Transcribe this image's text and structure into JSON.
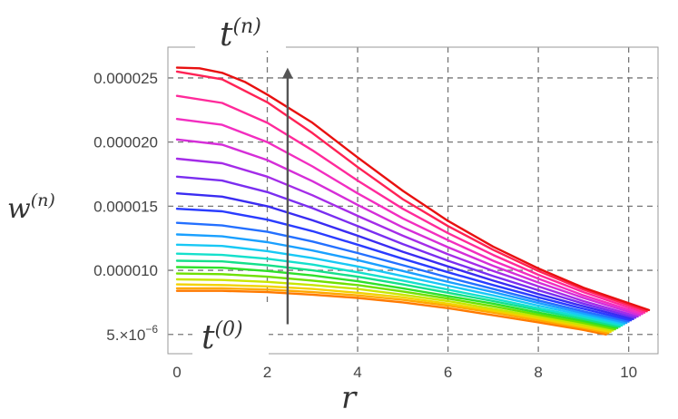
{
  "chart_data": {
    "type": "line",
    "xlabel": "r",
    "ylabel": "w",
    "ylabel_sup": "(n)",
    "xlim": [
      -0.2,
      10.65
    ],
    "ylim": [
      3.5e-06,
      2.74e-05
    ],
    "x_ticks": [
      0,
      2,
      4,
      6,
      8,
      10
    ],
    "x_tick_labels": [
      "0",
      "2",
      "4",
      "6",
      "8",
      "10"
    ],
    "y_ticks": [
      5e-06,
      1e-05,
      1.5e-05,
      2e-05,
      2.5e-05
    ],
    "y_tick_labels": [
      "0.000010",
      "0.000015",
      "0.000020",
      "0.000025"
    ],
    "y_tick_label_first": {
      "mantissa": "5.×10",
      "exponent": "−6"
    },
    "grid": {
      "x": [
        2,
        4,
        6,
        8,
        10
      ],
      "y": [
        5e-06,
        1e-05,
        1.5e-05,
        2e-05,
        2.5e-05
      ]
    },
    "annotations": {
      "arrow_x": 2.45,
      "arrow_from": 5.8e-06,
      "arrow_to": 2.58e-05,
      "label_top": {
        "base": "t",
        "sup": "(n)"
      },
      "label_bottom": {
        "base": "t",
        "sup": "(0)"
      }
    },
    "series_colors": [
      "#ff7a00",
      "#ffa800",
      "#f2d200",
      "#c8e600",
      "#6fe000",
      "#2ee02a",
      "#14e08a",
      "#14e0cc",
      "#18c8f5",
      "#1aa0ff",
      "#2470ff",
      "#2a3cff",
      "#3a2cf2",
      "#7a2ef0",
      "#a42ce8",
      "#d52ed8",
      "#f22ec0",
      "#ff2a9a",
      "#ff2255",
      "#e81010"
    ],
    "series": [
      {
        "values": [
          [
            0,
            8.4e-06
          ],
          [
            1,
            8.4e-06
          ],
          [
            2,
            8.3e-06
          ],
          [
            3,
            8.1e-06
          ],
          [
            4,
            7.85e-06
          ],
          [
            5,
            7.5e-06
          ],
          [
            6,
            7.05e-06
          ],
          [
            7,
            6.5e-06
          ],
          [
            8,
            5.95e-06
          ],
          [
            9,
            5.35e-06
          ],
          [
            9.5,
            5e-06
          ]
        ]
      },
      {
        "values": [
          [
            0,
            8.6e-06
          ],
          [
            1,
            8.6e-06
          ],
          [
            2,
            8.5e-06
          ],
          [
            3,
            8.3e-06
          ],
          [
            4,
            8.05e-06
          ],
          [
            5,
            7.7e-06
          ],
          [
            6,
            7.25e-06
          ],
          [
            7,
            6.7e-06
          ],
          [
            8,
            6.1e-06
          ],
          [
            9,
            5.5e-06
          ],
          [
            9.55,
            5.1e-06
          ]
        ]
      },
      {
        "values": [
          [
            0,
            8.9e-06
          ],
          [
            1,
            8.85e-06
          ],
          [
            2,
            8.75e-06
          ],
          [
            3,
            8.55e-06
          ],
          [
            4,
            8.25e-06
          ],
          [
            5,
            7.9e-06
          ],
          [
            6,
            7.4e-06
          ],
          [
            7,
            6.85e-06
          ],
          [
            8,
            6.25e-06
          ],
          [
            9,
            5.6e-06
          ],
          [
            9.6,
            5.2e-06
          ]
        ]
      },
      {
        "values": [
          [
            0,
            9.3e-06
          ],
          [
            1,
            9.25e-06
          ],
          [
            2,
            9.1e-06
          ],
          [
            3,
            8.85e-06
          ],
          [
            4,
            8.55e-06
          ],
          [
            5,
            8.1e-06
          ],
          [
            6,
            7.6e-06
          ],
          [
            7,
            7e-06
          ],
          [
            8,
            6.4e-06
          ],
          [
            9,
            5.75e-06
          ],
          [
            9.65,
            5.3e-06
          ]
        ]
      },
      {
        "values": [
          [
            0,
            9.75e-06
          ],
          [
            1,
            9.7e-06
          ],
          [
            2,
            9.5e-06
          ],
          [
            3,
            9.2e-06
          ],
          [
            4,
            8.85e-06
          ],
          [
            5,
            8.35e-06
          ],
          [
            6,
            7.8e-06
          ],
          [
            7,
            7.2e-06
          ],
          [
            8,
            6.55e-06
          ],
          [
            9,
            5.9e-06
          ],
          [
            9.7,
            5.4e-06
          ]
        ]
      },
      {
        "values": [
          [
            0,
            1.025e-05
          ],
          [
            1,
            1.02e-05
          ],
          [
            2,
            9.95e-06
          ],
          [
            3,
            9.6e-06
          ],
          [
            4,
            9.15e-06
          ],
          [
            5,
            8.6e-06
          ],
          [
            6,
            8e-06
          ],
          [
            7,
            7.4e-06
          ],
          [
            8,
            6.7e-06
          ],
          [
            9,
            6.05e-06
          ],
          [
            9.75,
            5.5e-06
          ]
        ]
      },
      {
        "values": [
          [
            0,
            1.075e-05
          ],
          [
            1,
            1.07e-05
          ],
          [
            2,
            1.04e-05
          ],
          [
            3,
            1e-05
          ],
          [
            4,
            9.5e-06
          ],
          [
            5,
            8.9e-06
          ],
          [
            6,
            8.25e-06
          ],
          [
            7,
            7.6e-06
          ],
          [
            8,
            6.9e-06
          ],
          [
            9,
            6.2e-06
          ],
          [
            9.8,
            5.6e-06
          ]
        ]
      },
      {
        "values": [
          [
            0,
            1.13e-05
          ],
          [
            1,
            1.12e-05
          ],
          [
            2,
            1.09e-05
          ],
          [
            3,
            1.045e-05
          ],
          [
            4,
            9.85e-06
          ],
          [
            5,
            9.2e-06
          ],
          [
            6,
            8.5e-06
          ],
          [
            7,
            7.8e-06
          ],
          [
            8,
            7.05e-06
          ],
          [
            9,
            6.35e-06
          ],
          [
            9.85,
            5.7e-06
          ]
        ]
      },
      {
        "values": [
          [
            0,
            1.2e-05
          ],
          [
            1,
            1.19e-05
          ],
          [
            2,
            1.15e-05
          ],
          [
            3,
            1.095e-05
          ],
          [
            4,
            1.03e-05
          ],
          [
            5,
            9.55e-06
          ],
          [
            6,
            8.8e-06
          ],
          [
            7,
            8.05e-06
          ],
          [
            8,
            7.25e-06
          ],
          [
            9,
            6.5e-06
          ],
          [
            9.9,
            5.8e-06
          ]
        ]
      },
      {
        "values": [
          [
            0,
            1.28e-05
          ],
          [
            1,
            1.265e-05
          ],
          [
            2,
            1.22e-05
          ],
          [
            3,
            1.155e-05
          ],
          [
            4,
            1.08e-05
          ],
          [
            5,
            9.95e-06
          ],
          [
            6,
            9.1e-06
          ],
          [
            7,
            8.3e-06
          ],
          [
            8,
            7.45e-06
          ],
          [
            9,
            6.65e-06
          ],
          [
            9.95,
            5.9e-06
          ]
        ]
      },
      {
        "values": [
          [
            0,
            1.37e-05
          ],
          [
            1,
            1.35e-05
          ],
          [
            2,
            1.3e-05
          ],
          [
            3,
            1.225e-05
          ],
          [
            4,
            1.135e-05
          ],
          [
            5,
            1.04e-05
          ],
          [
            6,
            9.45e-06
          ],
          [
            7,
            8.55e-06
          ],
          [
            8,
            7.65e-06
          ],
          [
            9,
            6.8e-06
          ],
          [
            10,
            6e-06
          ]
        ]
      },
      {
        "values": [
          [
            0,
            1.48e-05
          ],
          [
            1,
            1.46e-05
          ],
          [
            2,
            1.395e-05
          ],
          [
            3,
            1.305e-05
          ],
          [
            4,
            1.2e-05
          ],
          [
            5,
            1.09e-05
          ],
          [
            6,
            9.85e-06
          ],
          [
            7,
            8.85e-06
          ],
          [
            8,
            7.9e-06
          ],
          [
            9,
            7e-06
          ],
          [
            10.05,
            6.1e-06
          ]
        ]
      },
      {
        "values": [
          [
            0,
            1.6e-05
          ],
          [
            1,
            1.575e-05
          ],
          [
            2,
            1.5e-05
          ],
          [
            3,
            1.39e-05
          ],
          [
            4,
            1.27e-05
          ],
          [
            5,
            1.145e-05
          ],
          [
            6,
            1.03e-05
          ],
          [
            7,
            9.2e-06
          ],
          [
            8,
            8.15e-06
          ],
          [
            9,
            7.2e-06
          ],
          [
            10.1,
            6.2e-06
          ]
        ]
      },
      {
        "values": [
          [
            0,
            1.73e-05
          ],
          [
            1,
            1.7e-05
          ],
          [
            2,
            1.61e-05
          ],
          [
            3,
            1.485e-05
          ],
          [
            4,
            1.345e-05
          ],
          [
            5,
            1.205e-05
          ],
          [
            6,
            1.075e-05
          ],
          [
            7,
            9.55e-06
          ],
          [
            8,
            8.45e-06
          ],
          [
            9,
            7.4e-06
          ],
          [
            10.15,
            6.3e-06
          ]
        ]
      },
      {
        "values": [
          [
            0,
            1.87e-05
          ],
          [
            1,
            1.835e-05
          ],
          [
            2,
            1.73e-05
          ],
          [
            3,
            1.585e-05
          ],
          [
            4,
            1.425e-05
          ],
          [
            5,
            1.27e-05
          ],
          [
            6,
            1.125e-05
          ],
          [
            7,
            9.95e-06
          ],
          [
            8,
            8.75e-06
          ],
          [
            9,
            7.6e-06
          ],
          [
            10.2,
            6.4e-06
          ]
        ]
      },
      {
        "values": [
          [
            0,
            2.02e-05
          ],
          [
            1,
            1.98e-05
          ],
          [
            2,
            1.86e-05
          ],
          [
            3,
            1.695e-05
          ],
          [
            4,
            1.51e-05
          ],
          [
            5,
            1.335e-05
          ],
          [
            6,
            1.18e-05
          ],
          [
            7,
            1.035e-05
          ],
          [
            8,
            9.05e-06
          ],
          [
            9,
            7.85e-06
          ],
          [
            10.25,
            6.5e-06
          ]
        ]
      },
      {
        "values": [
          [
            0,
            2.18e-05
          ],
          [
            1,
            2.135e-05
          ],
          [
            2,
            2e-05
          ],
          [
            3,
            1.81e-05
          ],
          [
            4,
            1.6e-05
          ],
          [
            5,
            1.405e-05
          ],
          [
            6,
            1.235e-05
          ],
          [
            7,
            1.075e-05
          ],
          [
            8,
            9.35e-06
          ],
          [
            9,
            8.05e-06
          ],
          [
            10.3,
            6.6e-06
          ]
        ]
      },
      {
        "values": [
          [
            0,
            2.36e-05
          ],
          [
            1,
            2.305e-05
          ],
          [
            2,
            2.15e-05
          ],
          [
            3,
            1.935e-05
          ],
          [
            4,
            1.7e-05
          ],
          [
            5,
            1.48e-05
          ],
          [
            6,
            1.29e-05
          ],
          [
            7,
            1.12e-05
          ],
          [
            8,
            9.65e-06
          ],
          [
            9,
            8.3e-06
          ],
          [
            10.35,
            6.7e-06
          ]
        ]
      },
      {
        "values": [
          [
            0,
            2.55e-05
          ],
          [
            1,
            2.49e-05
          ],
          [
            2,
            2.31e-05
          ],
          [
            3,
            2.07e-05
          ],
          [
            4,
            1.805e-05
          ],
          [
            5,
            1.555e-05
          ],
          [
            6,
            1.345e-05
          ],
          [
            7,
            1.16e-05
          ],
          [
            8,
            9.95e-06
          ],
          [
            9,
            8.5e-06
          ],
          [
            10.4,
            6.8e-06
          ]
        ]
      },
      {
        "values": [
          [
            0,
            2.58e-05
          ],
          [
            0.5,
            2.575e-05
          ],
          [
            1,
            2.54e-05
          ],
          [
            1.5,
            2.47e-05
          ],
          [
            2,
            2.37e-05
          ],
          [
            3,
            2.15e-05
          ],
          [
            4,
            1.88e-05
          ],
          [
            5,
            1.62e-05
          ],
          [
            6,
            1.385e-05
          ],
          [
            7,
            1.185e-05
          ],
          [
            8,
            1.015e-05
          ],
          [
            9,
            8.65e-06
          ],
          [
            10.45,
            6.9e-06
          ]
        ]
      }
    ]
  }
}
